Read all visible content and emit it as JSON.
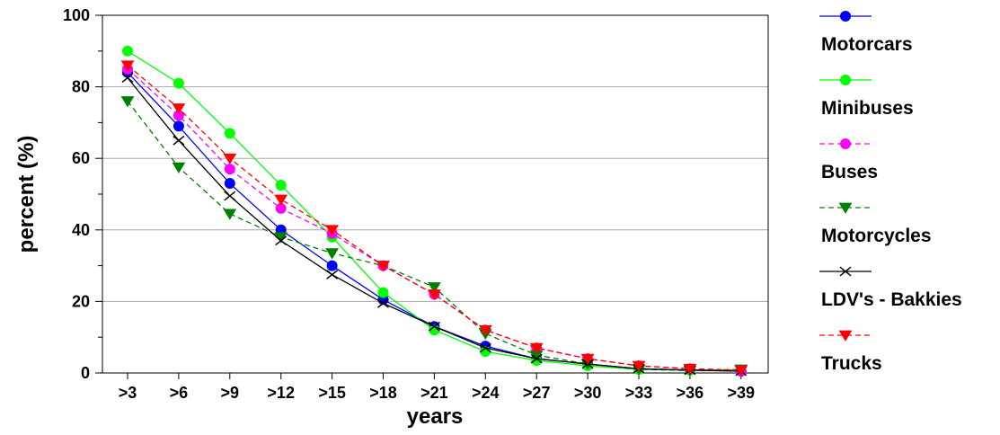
{
  "chart_data": {
    "type": "line",
    "title": "",
    "xlabel": "years",
    "ylabel": "percent     (%)",
    "categories": [
      ">3",
      ">6",
      ">9",
      ">12",
      ">15",
      ">18",
      ">21",
      ">24",
      ">27",
      ">30",
      ">33",
      ">36",
      ">39"
    ],
    "ylim": [
      0,
      100
    ],
    "yticks": [
      0,
      20,
      40,
      60,
      80,
      100
    ],
    "grid": "horizontal",
    "legend_position": "right",
    "series": [
      {
        "name": "Motorcars",
        "color": "#0000ff",
        "dash": "solid",
        "marker": "circle",
        "values": [
          84,
          69,
          53,
          40,
          30,
          20.5,
          13,
          7.5,
          4,
          2.5,
          1.2,
          0.8,
          0.5
        ]
      },
      {
        "name": "Minibuses",
        "color": "#00ff00",
        "dash": "solid",
        "marker": "circle",
        "values": [
          90,
          81,
          67,
          52.5,
          38,
          22.5,
          12,
          6,
          3.5,
          2,
          1,
          0.8,
          0.8
        ]
      },
      {
        "name": "Buses",
        "color": "#ff00ff",
        "dash": "dashed",
        "marker": "circle",
        "values": [
          85,
          72,
          57,
          46,
          39,
          30,
          22,
          12,
          7,
          4,
          2,
          1.2,
          0.5
        ]
      },
      {
        "name": "Motorcycles",
        "color": "#008000",
        "dash": "dashed",
        "marker": "triangle-down",
        "values": [
          76,
          57.5,
          44.5,
          38,
          33.5,
          30,
          24,
          11,
          5,
          2.5,
          1,
          0.7,
          1
        ]
      },
      {
        "name": "LDV's - Bakkies",
        "color": "#000000",
        "dash": "solid",
        "marker": "x",
        "values": [
          82.5,
          65,
          49.5,
          37,
          27.5,
          19.5,
          13,
          7,
          4,
          2.5,
          1.2,
          0.8,
          0.5
        ]
      },
      {
        "name": "Trucks",
        "color": "#ff0000",
        "dash": "dashed",
        "marker": "triangle-down",
        "values": [
          86,
          74,
          60,
          48.5,
          40,
          30,
          22,
          12,
          7,
          4,
          2,
          1.2,
          0.8
        ]
      }
    ]
  }
}
